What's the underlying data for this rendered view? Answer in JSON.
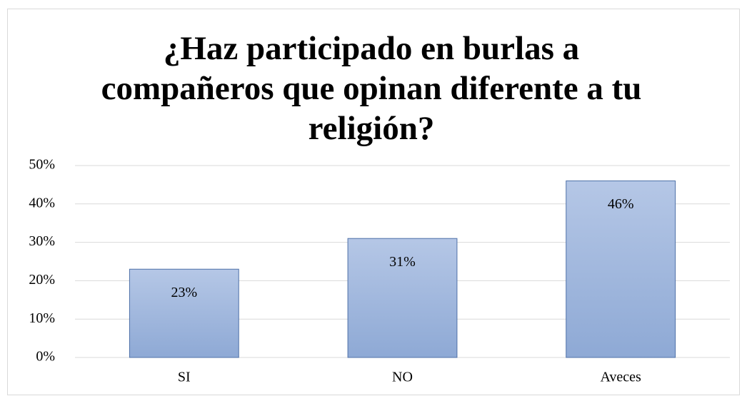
{
  "chart_data": {
    "type": "bar",
    "title": "¿Haz participado en burlas a compañeros que opinan diferente a tu religión?",
    "categories": [
      "SI",
      "NO",
      "Aveces"
    ],
    "values": [
      23,
      31,
      46
    ],
    "value_labels": [
      "23%",
      "31%",
      "46%"
    ],
    "color": "#a3b9de",
    "ylim": [
      0,
      50
    ],
    "yticks": [
      {
        "value": 0,
        "label": "0%"
      },
      {
        "value": 10,
        "label": "10%"
      },
      {
        "value": 20,
        "label": "20%"
      },
      {
        "value": 30,
        "label": "30%"
      },
      {
        "value": 40,
        "label": "40%"
      },
      {
        "value": 50,
        "label": "50%"
      }
    ],
    "grid": true
  }
}
